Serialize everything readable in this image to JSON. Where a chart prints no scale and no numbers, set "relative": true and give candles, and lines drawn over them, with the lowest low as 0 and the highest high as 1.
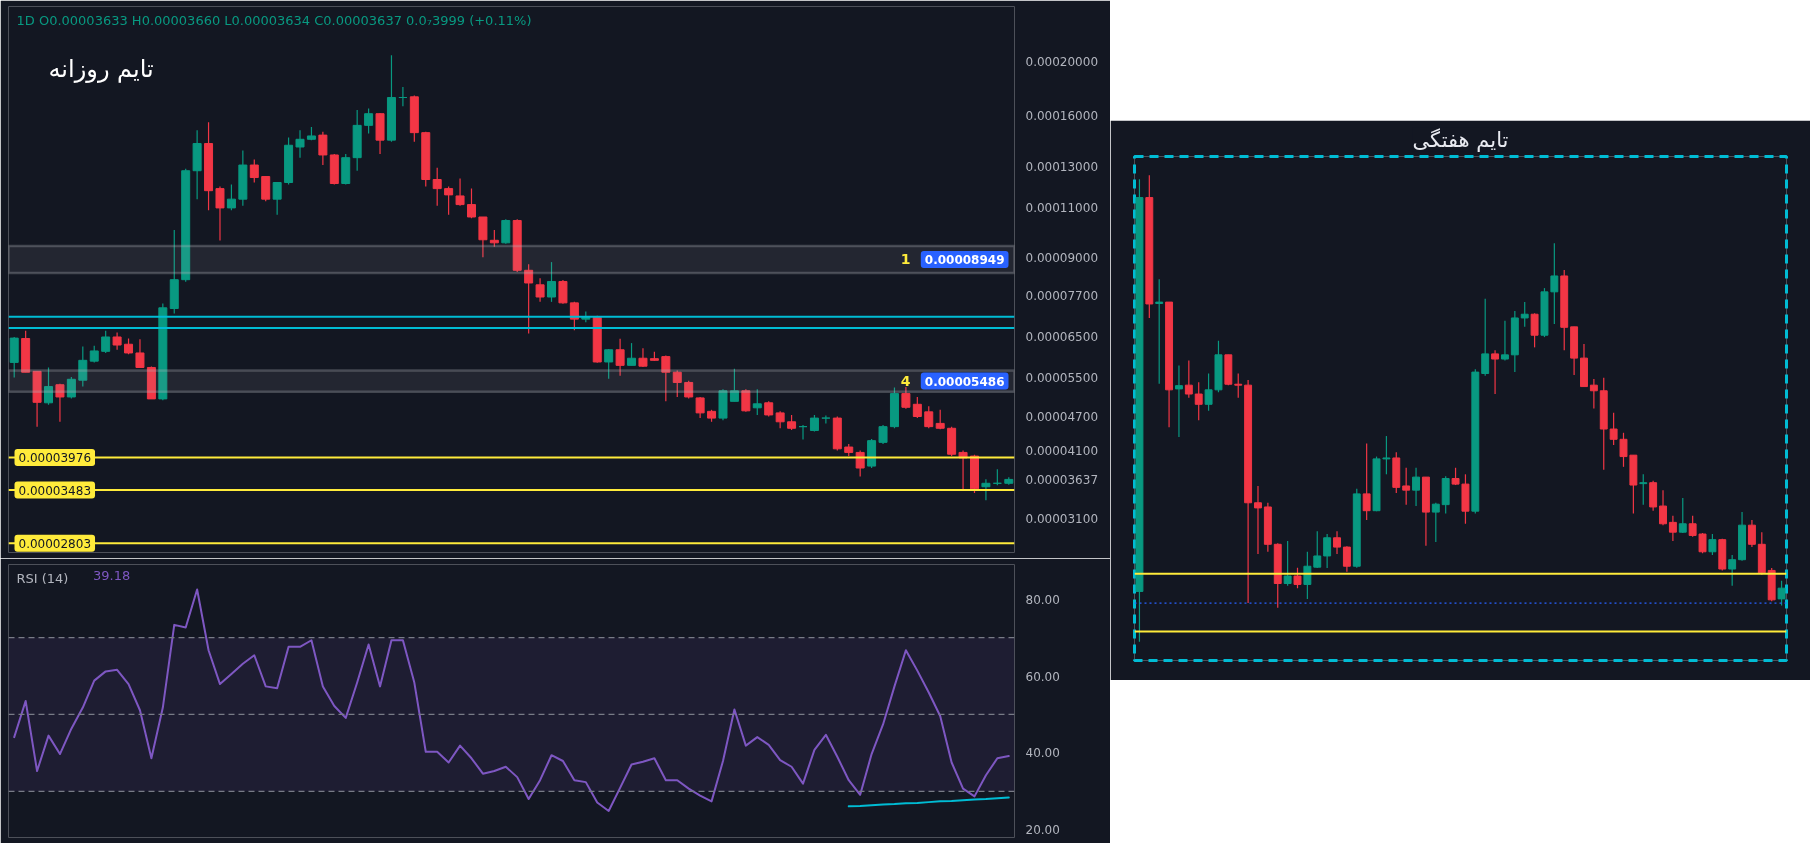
{
  "chart_data": [
    {
      "type": "candlestick",
      "title": "تایم روزانه",
      "subtitle": "1D O0.00003633 H0.00003660 L0.00003634 C0.00003637 0.0₇3999 (+0.11%)",
      "categories": [
        null,
        null,
        null,
        null,
        null,
        null,
        null,
        null,
        null,
        null,
        null,
        null,
        null,
        null,
        null,
        null,
        null,
        null,
        null,
        null,
        null,
        null,
        null,
        null,
        null,
        null,
        null,
        null,
        null,
        null,
        null,
        null,
        null,
        null,
        null,
        null,
        null,
        null,
        null,
        null,
        null,
        null,
        null,
        null,
        null,
        null,
        null,
        null,
        null,
        null,
        null,
        null,
        null,
        null,
        null,
        null,
        null,
        null,
        null,
        null,
        null,
        null,
        null,
        null,
        null,
        null,
        null,
        null,
        null,
        null,
        null,
        null,
        null,
        null,
        null,
        null,
        null,
        null,
        null,
        null,
        null,
        null,
        null,
        null,
        null,
        null,
        null,
        null
      ],
      "ohlc": [
        [
          5.86e-05,
          6.5e-05,
          5.51e-05,
          6.47e-05
        ],
        [
          6.46e-05,
          6.67e-05,
          5.63e-05,
          5.63e-05
        ],
        [
          5.65e-05,
          5.66e-05,
          4.51e-05,
          4.98e-05
        ],
        [
          4.97e-05,
          5.74e-05,
          4.93e-05,
          5.31e-05
        ],
        [
          5.35e-05,
          5.37e-05,
          4.6e-05,
          5.09e-05
        ],
        [
          5.09e-05,
          5.52e-05,
          5.06e-05,
          5.47e-05
        ],
        [
          5.45e-05,
          6.25e-05,
          5.31e-05,
          5.91e-05
        ],
        [
          5.89e-05,
          6.27e-05,
          5.86e-05,
          6.14e-05
        ],
        [
          6.13e-05,
          6.67e-05,
          6.09e-05,
          6.5e-05
        ],
        [
          6.5e-05,
          6.62e-05,
          6.17e-05,
          6.29e-05
        ],
        [
          6.31e-05,
          6.46e-05,
          6.06e-05,
          6.09e-05
        ],
        [
          6.09e-05,
          6.44e-05,
          5.74e-05,
          5.74e-05
        ],
        [
          5.74e-05,
          5.76e-05,
          5.05e-05,
          5.05e-05
        ],
        [
          5.05e-05,
          7.45e-05,
          5.02e-05,
          7.32e-05
        ],
        [
          7.3e-05,
          0.0001005,
          7.15e-05,
          8.21e-05
        ],
        [
          8.21e-05,
          0.000129,
          8.14e-05,
          0.000128
        ],
        [
          0.000128,
          0.000151,
          0.000114,
          0.000143
        ],
        [
          0.000143,
          0.000156,
          0.000109,
          0.000118
        ],
        [
          0.000119,
          0.00012,
          9.63e-05,
          0.00011
        ],
        [
          0.00011,
          0.000121,
          0.000109,
          0.000114
        ],
        [
          0.000114,
          0.000139,
          0.000111,
          0.000131
        ],
        [
          0.000131,
          0.000134,
          0.000122,
          0.0001245
        ],
        [
          0.000125,
          0.000125,
          0.000113,
          0.000114
        ],
        [
          0.000114,
          0.000122,
          0.000107,
          0.000122
        ],
        [
          0.000122,
          0.0001465,
          0.000121,
          0.000142
        ],
        [
          0.000141,
          0.000151,
          0.000135,
          0.0001455
        ],
        [
          0.0001455,
          0.000153,
          0.000145,
          0.0001475
        ],
        [
          0.000148,
          0.00015,
          0.000131,
          0.0001365
        ],
        [
          0.0001365,
          0.000137,
          0.000121,
          0.0001215
        ],
        [
          0.0001215,
          0.000137,
          0.000121,
          0.000135
        ],
        [
          0.000135,
          0.000164,
          0.000128,
          0.000154
        ],
        [
          0.000154,
          0.000165,
          0.000149,
          0.0001615
        ],
        [
          0.0001615,
          0.000162,
          0.000137,
          0.000145
        ],
        [
          0.000145,
          0.000205,
          0.000144,
          0.0001725
        ],
        [
          0.0001725,
          0.00018,
          0.0001665,
          0.0001725
        ],
        [
          0.000173,
          0.000174,
          0.000144,
          0.0001495
        ],
        [
          0.0001495,
          0.00015,
          0.00012,
          0.0001235
        ],
        [
          0.0001235,
          0.0001295,
          0.000111,
          0.000119
        ],
        [
          0.000119,
          0.00012,
          0.000107,
          0.000116
        ],
        [
          0.0001155,
          0.000124,
          0.000111,
          0.0001115
        ],
        [
          0.0001115,
          0.000119,
          0.0001055,
          0.000106
        ],
        [
          0.000106,
          0.000106,
          9e-05,
          9.66e-05
        ],
        [
          9.64e-05,
          0.0001005,
          9.39e-05,
          9.54e-05
        ],
        [
          9.54e-05,
          0.000105,
          9.5e-05,
          0.0001045
        ],
        [
          0.0001045,
          0.000105,
          8.47e-05,
          8.53e-05
        ],
        [
          8.53e-05,
          8.74e-05,
          6.59e-05,
          8.1e-05
        ],
        [
          8.04e-05,
          8.26e-05,
          7.5e-05,
          7.65e-05
        ],
        [
          7.65e-05,
          8.82e-05,
          7.5e-05,
          8.15e-05
        ],
        [
          8.15e-05,
          8.2e-05,
          7.44e-05,
          7.47e-05
        ],
        [
          7.47e-05,
          7.5e-05,
          6.68e-05,
          6.99e-05
        ],
        [
          6.99e-05,
          7.21e-05,
          6.9e-05,
          7.04e-05
        ],
        [
          7.04e-05,
          7.09e-05,
          5.85e-05,
          5.87e-05
        ],
        [
          5.87e-05,
          6.19e-05,
          5.48e-05,
          6.17e-05
        ],
        [
          6.17e-05,
          6.45e-05,
          5.55e-05,
          5.79e-05
        ],
        [
          5.79e-05,
          6.34e-05,
          5.79e-05,
          5.96e-05
        ],
        [
          5.96e-05,
          6.21e-05,
          5.75e-05,
          5.77e-05
        ],
        [
          5.95e-05,
          6.12e-05,
          5.9e-05,
          5.91e-05
        ],
        [
          6e-05,
          6.03e-05,
          5e-05,
          5.63e-05
        ],
        [
          5.63e-05,
          5.67e-05,
          5.09e-05,
          5.4e-05
        ],
        [
          5.4e-05,
          5.44e-05,
          5.06e-05,
          5.09e-05
        ],
        [
          5.07e-05,
          5.09e-05,
          4.67e-05,
          4.77e-05
        ],
        [
          4.8e-05,
          4.83e-05,
          4.6e-05,
          4.67e-05
        ],
        [
          4.67e-05,
          5.25e-05,
          4.63e-05,
          5.22e-05
        ],
        [
          5e-05,
          5.71e-05,
          5e-05,
          5.22e-05
        ],
        [
          5.22e-05,
          5.25e-05,
          4.79e-05,
          4.81e-05
        ],
        [
          4.87e-05,
          5.25e-05,
          4.73e-05,
          4.95e-05
        ],
        [
          4.97e-05,
          5e-05,
          4.7e-05,
          4.73e-05
        ],
        [
          4.77e-05,
          4.8e-05,
          4.48e-05,
          4.6e-05
        ],
        [
          4.6e-05,
          4.73e-05,
          4.45e-05,
          4.48e-05
        ],
        [
          4.51e-05,
          4.54e-05,
          4.28e-05,
          4.51e-05
        ],
        [
          4.44e-05,
          4.73e-05,
          4.42e-05,
          4.67e-05
        ],
        [
          4.67e-05,
          4.72e-05,
          4.57e-05,
          4.67e-05
        ],
        [
          4.67e-05,
          4.7e-05,
          4.09e-05,
          4.12e-05
        ],
        [
          4.15e-05,
          4.2e-05,
          4e-05,
          4.06e-05
        ],
        [
          4.06e-05,
          4.09e-05,
          3.68e-05,
          3.81e-05
        ],
        [
          3.84e-05,
          4.29e-05,
          3.81e-05,
          4.26e-05
        ],
        [
          4.23e-05,
          4.54e-05,
          4.2e-05,
          4.51e-05
        ],
        [
          4.51e-05,
          5.29e-05,
          4.48e-05,
          5.16e-05
        ],
        [
          5.16e-05,
          5.3e-05,
          4.85e-05,
          4.88e-05
        ],
        [
          4.94e-05,
          5.09e-05,
          4.67e-05,
          4.7e-05
        ],
        [
          4.79e-05,
          4.9e-05,
          4.48e-05,
          4.51e-05
        ],
        [
          4.57e-05,
          4.83e-05,
          4.46e-05,
          4.48e-05
        ],
        [
          4.48e-05,
          4.51e-05,
          4e-05,
          4.03e-05
        ],
        [
          4.06e-05,
          4.09e-05,
          3.48e-05,
          3.97e-05
        ],
        [
          4e-05,
          4.02e-05,
          3.44e-05,
          3.5e-05
        ],
        [
          3.53e-05,
          3.64e-05,
          3.34e-05,
          3.58e-05
        ],
        [
          3.58e-05,
          3.79e-05,
          3.55e-05,
          3.58e-05
        ],
        [
          3.58e-05,
          3.67e-05,
          3.56e-05,
          3.637e-05
        ]
      ],
      "colors": [
        "#089981",
        "#f23645",
        "#f23645",
        "#089981",
        "#f23645",
        "#089981",
        "#089981",
        "#089981",
        "#089981",
        "#f23645",
        "#f23645",
        "#f23645",
        "#f23645",
        "#089981",
        "#089981",
        "#089981",
        "#089981",
        "#f23645",
        "#f23645",
        "#089981",
        "#089981",
        "#f23645",
        "#f23645",
        "#089981",
        "#089981",
        "#089981",
        "#089981",
        "#f23645",
        "#f23645",
        "#089981",
        "#089981",
        "#089981",
        "#f23645",
        "#089981",
        "#089981",
        "#f23645",
        "#f23645",
        "#f23645",
        "#f23645",
        "#f23645",
        "#f23645",
        "#f23645",
        "#f23645",
        "#089981",
        "#f23645",
        "#f23645",
        "#f23645",
        "#089981",
        "#f23645",
        "#f23645",
        "#089981",
        "#f23645",
        "#089981",
        "#f23645",
        "#089981",
        "#f23645",
        "#f23645",
        "#f23645",
        "#f23645",
        "#f23645",
        "#f23645",
        "#f23645",
        "#089981",
        "#089981",
        "#f23645",
        "#089981",
        "#f23645",
        "#f23645",
        "#f23645",
        "#089981",
        "#089981",
        "#089981",
        "#f23645",
        "#f23645",
        "#f23645",
        "#089981",
        "#089981",
        "#089981",
        "#f23645",
        "#f23645",
        "#f23645",
        "#f23645",
        "#f23645",
        "#f23645",
        "#f23645",
        "#089981",
        "#089981",
        "#089981"
      ],
      "log": true,
      "ylim": [
        2.7e-05,
        0.00025
      ],
      "yticks": [
        {
          "value": 0.0002,
          "label": "0.00020000"
        },
        {
          "value": 0.00016,
          "label": "0.00016000"
        },
        {
          "value": 0.00013,
          "label": "0.00013000"
        },
        {
          "value": 0.00011,
          "label": "0.00011000"
        },
        {
          "value": 9e-05,
          "label": "0.00009000"
        },
        {
          "value": 7.7e-05,
          "label": "0.00007700"
        },
        {
          "value": 6.5e-05,
          "label": "0.00006500"
        },
        {
          "value": 5.5e-05,
          "label": "0.00005500"
        },
        {
          "value": 4.7e-05,
          "label": "0.00004700"
        },
        {
          "value": 4.1e-05,
          "label": "0.00004100"
        },
        {
          "value": 3.637e-05,
          "label": "0.00003637"
        },
        {
          "value": 3.1e-05,
          "label": "0.00003100"
        }
      ],
      "tick_labels": "y",
      "ref_lines": [
        {
          "axis": "y",
          "value": 3.976e-05,
          "label": "0.00003976",
          "color": "#ffeb3b"
        },
        {
          "axis": "y",
          "value": 3.483e-05,
          "label": "0.00003483",
          "color": "#ffeb3b"
        },
        {
          "axis": "y",
          "value": 2.803e-05,
          "label": "0.00002803",
          "color": "#ffeb3b"
        },
        {
          "axis": "y",
          "value": 7.06e-05,
          "color": "#00bcd4"
        },
        {
          "axis": "y",
          "value": 6.74e-05,
          "color": "#00bcd4"
        }
      ],
      "bands": [
        {
          "axis": "y",
          "from": 8.44e-05,
          "to": 9.42e-05,
          "label": "1",
          "color": "#b2b5be"
        },
        {
          "axis": "y",
          "from": 5.2e-05,
          "to": 5.67e-05,
          "label": "4",
          "color": "#b2b5be"
        }
      ],
      "annotations": [
        "0.00008949",
        "0.00005486"
      ]
    },
    {
      "type": "line",
      "title": "RSI (14)",
      "categories": [
        null,
        null,
        null,
        null,
        null,
        null,
        null,
        null,
        null,
        null,
        null,
        null,
        null,
        null,
        null,
        null,
        null,
        null,
        null,
        null,
        null,
        null,
        null,
        null,
        null,
        null,
        null,
        null,
        null,
        null,
        null,
        null,
        null,
        null,
        null,
        null,
        null,
        null,
        null,
        null,
        null,
        null,
        null,
        null,
        null,
        null,
        null,
        null,
        null,
        null,
        null,
        null,
        null,
        null,
        null,
        null,
        null,
        null,
        null,
        null,
        null,
        null,
        null,
        null,
        null,
        null,
        null,
        null,
        null,
        null,
        null,
        null,
        null,
        null,
        null,
        null,
        null,
        null,
        null,
        null,
        null,
        null,
        null,
        null,
        null,
        null,
        null,
        null
      ],
      "series": [
        {
          "color": "#7e57c2",
          "values": [
            44.1,
            53.5,
            35.3,
            44.5,
            39.7,
            46.3,
            51.8,
            58.8,
            61.2,
            61.6,
            57.9,
            51.1,
            38.6,
            51.8,
            73.3,
            72.6,
            82.5,
            66.7,
            57.9,
            60.5,
            63.2,
            65.4,
            57.3,
            56.8,
            67.6,
            67.6,
            69.3,
            57.3,
            52.2,
            49.1,
            58.3,
            68.2,
            57.3,
            69.3,
            69.3,
            58.3,
            40.3,
            40.3,
            37.5,
            41.9,
            38.6,
            34.6,
            35.3,
            36.4,
            33.7,
            28.0,
            32.9,
            39.4,
            37.9,
            32.9,
            32.4,
            27.1,
            24.9,
            30.9,
            37.0,
            37.7,
            38.6,
            32.9,
            32.9,
            30.7,
            28.9,
            27.4,
            37.9,
            51.3,
            41.9,
            44.1,
            42.1,
            38.1,
            36.4,
            32.0,
            40.8,
            44.7,
            39.0,
            32.9,
            29.1,
            39.7,
            47.4,
            57.3,
            66.7,
            61.4,
            55.7,
            49.6,
            37.5,
            30.7,
            28.7,
            34.2,
            38.6,
            39.18
          ]
        },
        {
          "type": "line",
          "color": "#00bcd4",
          "values": [
            null,
            null,
            null,
            null,
            null,
            null,
            null,
            null,
            null,
            null,
            null,
            null,
            null,
            null,
            null,
            null,
            null,
            null,
            null,
            null,
            null,
            null,
            null,
            null,
            null,
            null,
            null,
            null,
            null,
            null,
            null,
            null,
            null,
            null,
            null,
            null,
            null,
            null,
            null,
            null,
            null,
            null,
            null,
            null,
            null,
            null,
            null,
            null,
            null,
            null,
            null,
            null,
            null,
            null,
            null,
            null,
            null,
            null,
            null,
            null,
            null,
            null,
            null,
            null,
            null,
            null,
            null,
            null,
            null,
            null,
            null,
            null,
            null,
            26.1,
            26.2,
            26.4,
            26.6,
            26.7,
            26.9,
            27.0,
            27.2,
            27.4,
            27.5,
            27.7,
            27.9,
            28.0,
            28.2,
            28.4
          ]
        }
      ],
      "ylim": [
        18,
        89
      ],
      "yticks": [
        {
          "value": 20,
          "label": "20.00"
        },
        {
          "value": 40,
          "label": "40.00"
        },
        {
          "value": 60,
          "label": "60.00"
        },
        {
          "value": 80,
          "label": "80.00"
        }
      ],
      "tick_labels": "y",
      "bands": [
        {
          "axis": "y",
          "from": 30,
          "to": 70,
          "color": "#7e57c2"
        }
      ],
      "ref_lines": [
        {
          "axis": "y",
          "value": 70,
          "color": "#787b86",
          "line_style": "dashed"
        },
        {
          "axis": "y",
          "value": 50,
          "color": "#787b86",
          "line_style": "dashed"
        },
        {
          "axis": "y",
          "value": 30,
          "color": "#787b86",
          "line_style": "dashed"
        }
      ],
      "annotations": [
        "39.18"
      ]
    },
    {
      "type": "candlestick",
      "title": "تایم هفتگی",
      "relative": true,
      "tick_labels": false,
      "categories": [
        null,
        null,
        null,
        null,
        null,
        null,
        null,
        null,
        null,
        null,
        null,
        null,
        null,
        null,
        null,
        null,
        null,
        null,
        null,
        null,
        null,
        null,
        null,
        null,
        null,
        null,
        null,
        null,
        null,
        null,
        null,
        null,
        null,
        null,
        null,
        null,
        null,
        null,
        null,
        null,
        null,
        null,
        null,
        null,
        null,
        null,
        null,
        null,
        null,
        null,
        null,
        null,
        null,
        null,
        null,
        null,
        null,
        null,
        null,
        null,
        null,
        null,
        null,
        null,
        null,
        null
      ],
      "ohlc": [
        [
          0.108,
          0.991,
          0,
          0.952
        ],
        [
          0.952,
          1,
          0.694,
          0.724
        ],
        [
          0.725,
          0.777,
          0.553,
          0.728
        ],
        [
          0.728,
          0.728,
          0.46,
          0.54
        ],
        [
          0.542,
          0.592,
          0.439,
          0.549
        ],
        [
          0.55,
          0.603,
          0.523,
          0.531
        ],
        [
          0.531,
          0.556,
          0.475,
          0.509
        ],
        [
          0.509,
          0.575,
          0.495,
          0.54
        ],
        [
          0.54,
          0.645,
          0.535,
          0.615
        ],
        [
          0.615,
          0.615,
          0.55,
          0.552
        ],
        [
          0.552,
          0.575,
          0.523,
          0.55
        ],
        [
          0.55,
          0.561,
          0.083,
          0.298
        ],
        [
          0.298,
          0.334,
          0.188,
          0.287
        ],
        [
          0.289,
          0.298,
          0.193,
          0.209
        ],
        [
          0.209,
          0.211,
          0.073,
          0.125
        ],
        [
          0.125,
          0.216,
          0.12,
          0.141
        ],
        [
          0.141,
          0.159,
          0.115,
          0.123
        ],
        [
          0.123,
          0.193,
          0.092,
          0.162
        ],
        [
          0.16,
          0.237,
          0.158,
          0.184
        ],
        [
          0.184,
          0.231,
          0.158,
          0.223
        ],
        [
          0.223,
          0.237,
          0.188,
          0.203
        ],
        [
          0.203,
          0.205,
          0.15,
          0.162
        ],
        [
          0.162,
          0.328,
          0.159,
          0.317
        ],
        [
          0.317,
          0.425,
          0.261,
          0.281
        ],
        [
          0.281,
          0.397,
          0.28,
          0.392
        ],
        [
          0.392,
          0.441,
          0.359,
          0.394
        ],
        [
          0.394,
          0.406,
          0.319,
          0.331
        ],
        [
          0.334,
          0.373,
          0.294,
          0.325
        ],
        [
          0.325,
          0.373,
          0.291,
          0.353
        ],
        [
          0.353,
          0.353,
          0.206,
          0.278
        ],
        [
          0.278,
          0.298,
          0.214,
          0.295
        ],
        [
          0.294,
          0.355,
          0.275,
          0.35
        ],
        [
          0.35,
          0.373,
          0.336,
          0.338
        ],
        [
          0.338,
          0.359,
          0.253,
          0.28
        ],
        [
          0.28,
          0.584,
          0.275,
          0.578
        ],
        [
          0.575,
          0.735,
          0.57,
          0.617
        ],
        [
          0.617,
          0.625,
          0.531,
          0.606
        ],
        [
          0.606,
          0.688,
          0.603,
          0.615
        ],
        [
          0.615,
          0.709,
          0.578,
          0.694
        ],
        [
          0.694,
          0.728,
          0.675,
          0.702
        ],
        [
          0.702,
          0.704,
          0.631,
          0.657
        ],
        [
          0.657,
          0.758,
          0.653,
          0.75
        ],
        [
          0.75,
          0.854,
          0.681,
          0.784
        ],
        [
          0.784,
          0.797,
          0.625,
          0.674
        ],
        [
          0.675,
          0.675,
          0.572,
          0.608
        ],
        [
          0.608,
          0.638,
          0.547,
          0.547
        ],
        [
          0.55,
          0.563,
          0.5,
          0.538
        ],
        [
          0.538,
          0.566,
          0.369,
          0.456
        ],
        [
          0.456,
          0.491,
          0.422,
          0.434
        ],
        [
          0.434,
          0.448,
          0.375,
          0.397
        ],
        [
          0.4,
          0.4,
          0.275,
          0.336
        ],
        [
          0.339,
          0.359,
          0.294,
          0.341
        ],
        [
          0.341,
          0.345,
          0.281,
          0.289
        ],
        [
          0.291,
          0.325,
          0.25,
          0.253
        ],
        [
          0.256,
          0.27,
          0.216,
          0.235
        ],
        [
          0.235,
          0.308,
          0.233,
          0.253
        ],
        [
          0.253,
          0.27,
          0.225,
          0.228
        ],
        [
          0.231,
          0.233,
          0.19,
          0.193
        ],
        [
          0.193,
          0.231,
          0.186,
          0.219
        ],
        [
          0.219,
          0.221,
          0.153,
          0.156
        ],
        [
          0.156,
          0.186,
          0.12,
          0.176
        ],
        [
          0.176,
          0.278,
          0.174,
          0.25
        ],
        [
          0.25,
          0.261,
          0.203,
          0.209
        ],
        [
          0.209,
          0.235,
          0.144,
          0.148
        ],
        [
          0.153,
          0.158,
          0.087,
          0.09
        ],
        [
          0.092,
          0.131,
          0.078,
          0.115
        ]
      ],
      "colors": [
        "#089981",
        "#f23645",
        "#089981",
        "#f23645",
        "#089981",
        "#f23645",
        "#f23645",
        "#089981",
        "#089981",
        "#f23645",
        "#f23645",
        "#f23645",
        "#f23645",
        "#f23645",
        "#f23645",
        "#089981",
        "#f23645",
        "#089981",
        "#089981",
        "#089981",
        "#f23645",
        "#f23645",
        "#089981",
        "#f23645",
        "#089981",
        "#089981",
        "#f23645",
        "#f23645",
        "#089981",
        "#f23645",
        "#089981",
        "#089981",
        "#f23645",
        "#f23645",
        "#089981",
        "#089981",
        "#f23645",
        "#089981",
        "#089981",
        "#089981",
        "#f23645",
        "#089981",
        "#089981",
        "#f23645",
        "#f23645",
        "#f23645",
        "#f23645",
        "#f23645",
        "#f23645",
        "#f23645",
        "#f23645",
        "#089981",
        "#f23645",
        "#f23645",
        "#f23645",
        "#089981",
        "#f23645",
        "#f23645",
        "#089981",
        "#f23645",
        "#089981",
        "#089981",
        "#f23645",
        "#f23645",
        "#f23645",
        "#089981"
      ],
      "ref_lines": [
        {
          "axis": "y",
          "value": 0.146,
          "color": "#ffeb3b"
        },
        {
          "axis": "y",
          "value": 0.022,
          "color": "#ffeb3b"
        },
        {
          "axis": "y",
          "value": 0.083,
          "color": "#2962ff",
          "line_style": "dotted"
        }
      ]
    }
  ]
}
